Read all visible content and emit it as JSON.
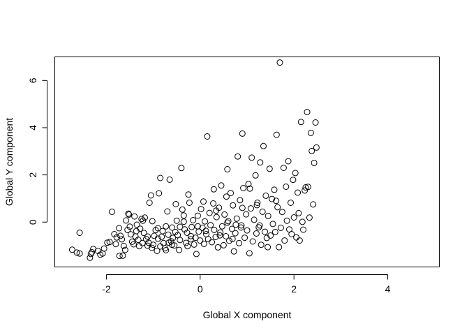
{
  "chart_data": {
    "type": "scatter",
    "title": "",
    "xlabel": "Global X component",
    "ylabel": "Global Y component",
    "xlim": [
      -3.1,
      5.1
    ],
    "ylim": [
      -1.9,
      7.0
    ],
    "x_ticks": [
      -2,
      0,
      2,
      4
    ],
    "y_ticks": [
      0,
      2,
      4,
      6
    ],
    "x_tick_labels": [
      "-2",
      "0",
      "2",
      "4"
    ],
    "y_tick_labels": [
      "0",
      "2",
      "4",
      "6"
    ],
    "grid": false,
    "points": [
      [
        -2.73,
        -1.17
      ],
      [
        -2.63,
        -1.29
      ],
      [
        -2.57,
        -1.33
      ],
      [
        -2.57,
        -0.45
      ],
      [
        -2.35,
        -1.51
      ],
      [
        -2.33,
        -1.35
      ],
      [
        -2.31,
        -1.28
      ],
      [
        -2.28,
        -1.14
      ],
      [
        -2.18,
        -1.22
      ],
      [
        -2.13,
        -1.38
      ],
      [
        -2.08,
        -1.33
      ],
      [
        -2.05,
        -1.12
      ],
      [
        -1.98,
        -0.87
      ],
      [
        -1.93,
        -0.84
      ],
      [
        -1.88,
        0.44
      ],
      [
        -1.83,
        -0.51
      ],
      [
        -1.8,
        -0.93
      ],
      [
        -1.78,
        -0.65
      ],
      [
        -1.73,
        -0.26
      ],
      [
        -1.72,
        -1.43
      ],
      [
        -1.7,
        -0.58
      ],
      [
        -1.67,
        -0.73
      ],
      [
        -1.65,
        -1.42
      ],
      [
        -1.63,
        -1.01
      ],
      [
        -1.6,
        -1.18
      ],
      [
        -1.58,
        0.07
      ],
      [
        -1.55,
        -0.33
      ],
      [
        -1.53,
        0.36
      ],
      [
        -1.52,
        0.32
      ],
      [
        -1.5,
        -0.19
      ],
      [
        -1.48,
        -0.52
      ],
      [
        -1.45,
        -0.83
      ],
      [
        -1.42,
        -0.94
      ],
      [
        -1.4,
        0.24
      ],
      [
        -1.38,
        -0.61
      ],
      [
        -1.35,
        -0.11
      ],
      [
        -1.32,
        -0.75
      ],
      [
        -1.3,
        -1.02
      ],
      [
        -1.28,
        -0.28
      ],
      [
        -1.25,
        0.13
      ],
      [
        -1.22,
        0.06
      ],
      [
        -1.2,
        -0.46
      ],
      [
        -1.18,
        0.19
      ],
      [
        -1.15,
        -0.72
      ],
      [
        -1.12,
        -1.0
      ],
      [
        -1.1,
        -0.87
      ],
      [
        -1.08,
        0.82
      ],
      [
        -1.05,
        1.13
      ],
      [
        -1.03,
        -1.09
      ],
      [
        -1.0,
        -0.96
      ],
      [
        -0.98,
        -0.58
      ],
      [
        -0.95,
        -0.34
      ],
      [
        -0.92,
        -1.22
      ],
      [
        -0.9,
        -0.7
      ],
      [
        -0.88,
        1.22
      ],
      [
        -0.85,
        1.87
      ],
      [
        -0.82,
        -0.62
      ],
      [
        -0.8,
        -0.38
      ],
      [
        -0.78,
        -0.89
      ],
      [
        -0.75,
        -1.11
      ],
      [
        -0.73,
        -0.18
      ],
      [
        -0.7,
        0.45
      ],
      [
        -0.68,
        -0.53
      ],
      [
        -0.65,
        1.8
      ],
      [
        -0.62,
        -0.81
      ],
      [
        -0.6,
        -0.23
      ],
      [
        -0.58,
        -0.67
      ],
      [
        -0.55,
        -0.99
      ],
      [
        -0.53,
        -0.42
      ],
      [
        -0.5,
        0.06
      ],
      [
        -0.48,
        -0.55
      ],
      [
        -0.45,
        -1.18
      ],
      [
        -0.43,
        -0.76
      ],
      [
        -0.4,
        2.29
      ],
      [
        -0.38,
        0.53
      ],
      [
        -0.35,
        0.28
      ],
      [
        -0.33,
        -0.31
      ],
      [
        -0.3,
        -0.88
      ],
      [
        -0.28,
        -0.45
      ],
      [
        -0.25,
        1.17
      ],
      [
        -0.23,
        0.82
      ],
      [
        -0.2,
        -0.59
      ],
      [
        -0.18,
        -0.21
      ],
      [
        -0.15,
        0.08
      ],
      [
        -0.13,
        -0.95
      ],
      [
        -0.1,
        -0.66
      ],
      [
        -0.08,
        -1.35
      ],
      [
        -0.05,
        0.27
      ],
      [
        -0.03,
        -0.4
      ],
      [
        0.0,
        -0.78
      ],
      [
        0.02,
        0.55
      ],
      [
        0.05,
        -0.24
      ],
      [
        0.08,
        -0.92
      ],
      [
        0.1,
        0.03
      ],
      [
        0.13,
        -0.51
      ],
      [
        0.15,
        3.63
      ],
      [
        0.17,
        -0.72
      ],
      [
        0.2,
        0.39
      ],
      [
        0.22,
        -0.13
      ],
      [
        0.25,
        -0.85
      ],
      [
        0.28,
        0.79
      ],
      [
        0.3,
        -0.33
      ],
      [
        0.33,
        -0.63
      ],
      [
        0.35,
        0.21
      ],
      [
        0.38,
        -1.07
      ],
      [
        0.4,
        0.61
      ],
      [
        0.43,
        -0.44
      ],
      [
        0.45,
        1.55
      ],
      [
        0.47,
        -0.18
      ],
      [
        0.5,
        -0.98
      ],
      [
        0.52,
        0.32
      ],
      [
        0.55,
        -0.6
      ],
      [
        0.58,
        2.24
      ],
      [
        0.6,
        0.04
      ],
      [
        0.62,
        -0.79
      ],
      [
        0.65,
        1.23
      ],
      [
        0.68,
        -0.29
      ],
      [
        0.7,
        0.71
      ],
      [
        0.72,
        -1.24
      ],
      [
        0.75,
        -0.47
      ],
      [
        0.78,
        0.15
      ],
      [
        0.8,
        2.78
      ],
      [
        0.83,
        -0.89
      ],
      [
        0.85,
        0.93
      ],
      [
        0.88,
        -0.14
      ],
      [
        0.9,
        3.75
      ],
      [
        0.92,
        1.44
      ],
      [
        0.95,
        -0.66
      ],
      [
        0.98,
        0.33
      ],
      [
        1.0,
        -0.35
      ],
      [
        1.03,
        1.61
      ],
      [
        1.05,
        -1.32
      ],
      [
        1.08,
        0.58
      ],
      [
        1.1,
        2.73
      ],
      [
        1.12,
        -0.82
      ],
      [
        1.15,
        0.1
      ],
      [
        1.18,
        1.98
      ],
      [
        1.2,
        -0.48
      ],
      [
        1.22,
        0.82
      ],
      [
        1.25,
        -0.22
      ],
      [
        1.28,
        2.53
      ],
      [
        1.3,
        -0.96
      ],
      [
        1.33,
        0.44
      ],
      [
        1.35,
        3.22
      ],
      [
        1.38,
        -0.41
      ],
      [
        1.4,
        1.12
      ],
      [
        1.42,
        -0.67
      ],
      [
        1.45,
        0.26
      ],
      [
        1.48,
        2.26
      ],
      [
        1.5,
        -0.57
      ],
      [
        1.53,
        0.98
      ],
      [
        1.55,
        -0.08
      ],
      [
        1.58,
        1.37
      ],
      [
        1.6,
        -0.42
      ],
      [
        1.63,
        3.7
      ],
      [
        1.65,
        0.63
      ],
      [
        1.68,
        -1.06
      ],
      [
        1.7,
        6.76
      ],
      [
        1.72,
        -0.24
      ],
      [
        1.75,
        0.43
      ],
      [
        1.78,
        2.3
      ],
      [
        1.8,
        -0.78
      ],
      [
        1.83,
        1.5
      ],
      [
        1.85,
        0.06
      ],
      [
        1.88,
        2.58
      ],
      [
        1.9,
        -0.31
      ],
      [
        1.93,
        0.82
      ],
      [
        1.95,
        -0.51
      ],
      [
        1.98,
        1.79
      ],
      [
        2.0,
        0.2
      ],
      [
        2.03,
        2.08
      ],
      [
        2.05,
        -0.65
      ],
      [
        2.08,
        1.25
      ],
      [
        2.1,
        0.38
      ],
      [
        2.12,
        -0.78
      ],
      [
        2.15,
        4.24
      ],
      [
        2.18,
        0.01
      ],
      [
        2.2,
        -0.32
      ],
      [
        2.23,
        1.34
      ],
      [
        2.25,
        1.47
      ],
      [
        2.28,
        4.66
      ],
      [
        2.3,
        1.49
      ],
      [
        2.33,
        0.19
      ],
      [
        2.36,
        3.78
      ],
      [
        2.38,
        3.01
      ],
      [
        2.41,
        0.75
      ],
      [
        2.43,
        2.51
      ],
      [
        2.46,
        4.22
      ],
      [
        2.48,
        3.16
      ],
      [
        -0.05,
        -0.18
      ],
      [
        -0.6,
        -0.96
      ],
      [
        -0.85,
        -1.03
      ],
      [
        -1.02,
        0.04
      ],
      [
        -0.2,
        -0.73
      ],
      [
        0.42,
        -0.56
      ],
      [
        0.58,
        -0.02
      ],
      [
        0.76,
        -0.11
      ],
      [
        0.9,
        0.6
      ],
      [
        -0.35,
        0.02
      ],
      [
        -1.36,
        -0.38
      ],
      [
        -1.12,
        -0.61
      ],
      [
        -0.67,
        -0.87
      ],
      [
        -0.27,
        -1.02
      ],
      [
        0.12,
        -0.37
      ],
      [
        0.34,
        0.49
      ],
      [
        0.69,
        -0.71
      ],
      [
        1.06,
        1.42
      ],
      [
        1.21,
        0.72
      ],
      [
        -0.73,
        -1.19
      ],
      [
        -0.43,
        -0.2
      ],
      [
        -0.9,
        -0.26
      ],
      [
        -1.23,
        -0.89
      ],
      [
        -0.52,
        0.76
      ],
      [
        0.07,
        0.87
      ],
      [
        0.29,
        1.39
      ],
      [
        0.56,
        1.08
      ],
      [
        0.87,
        -0.23
      ],
      [
        1.27,
        -0.14
      ],
      [
        1.44,
        -1.06
      ],
      [
        1.62,
        0.9
      ]
    ]
  }
}
